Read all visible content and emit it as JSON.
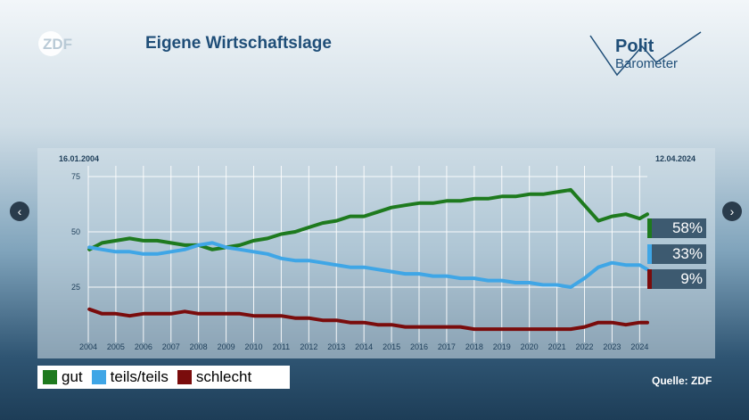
{
  "header": {
    "brand": "ZDF",
    "title": "Eigene Wirtschaftslage",
    "polit_line1": "Polit",
    "polit_line2": "Barometer"
  },
  "date_start": "16.01.2004",
  "date_end": "12.04.2024",
  "legend": [
    {
      "label": "gut",
      "color": "#1e7a1e"
    },
    {
      "label": "teils/teils",
      "color": "#3fa6e6"
    },
    {
      "label": "schlecht",
      "color": "#7a0c0c"
    }
  ],
  "current_values": [
    "58%",
    "33%",
    "9%"
  ],
  "source": "Quelle: ZDF",
  "colors": {
    "gut": "#1e7a1e",
    "teils": "#3fa6e6",
    "schlecht": "#7a0c0c",
    "value_box": "#3d5a70"
  },
  "chart_data": {
    "type": "line",
    "xlabel": "",
    "ylabel": "",
    "xlim": [
      2004,
      2024.28
    ],
    "ylim": [
      0,
      80
    ],
    "yticks": [
      25,
      50,
      75
    ],
    "xticks": [
      "2004",
      "2005",
      "2006",
      "2007",
      "2008",
      "2009",
      "2010",
      "2011",
      "2012",
      "2013",
      "2014",
      "2015",
      "2016",
      "2017",
      "2018",
      "2019",
      "2020",
      "2021",
      "2022",
      "2023",
      "2024"
    ],
    "grid": true,
    "legend_position": "bottom-left",
    "x": [
      2004.04,
      2004.5,
      2005,
      2005.5,
      2006,
      2006.5,
      2007,
      2007.5,
      2008,
      2008.5,
      2009,
      2009.5,
      2010,
      2010.5,
      2011,
      2011.5,
      2012,
      2012.5,
      2013,
      2013.5,
      2014,
      2014.5,
      2015,
      2015.5,
      2016,
      2016.5,
      2017,
      2017.5,
      2018,
      2018.5,
      2019,
      2019.5,
      2020,
      2020.5,
      2021,
      2021.5,
      2022,
      2022.5,
      2023,
      2023.5,
      2024,
      2024.28
    ],
    "series": [
      {
        "name": "gut",
        "values": [
          42,
          45,
          46,
          47,
          46,
          46,
          45,
          44,
          44,
          42,
          43,
          44,
          46,
          47,
          49,
          50,
          52,
          54,
          55,
          57,
          57,
          59,
          61,
          62,
          63,
          63,
          64,
          64,
          65,
          65,
          66,
          66,
          67,
          67,
          68,
          69,
          62,
          55,
          57,
          58,
          56,
          58
        ]
      },
      {
        "name": "teils/teils",
        "values": [
          43,
          42,
          41,
          41,
          40,
          40,
          41,
          42,
          44,
          45,
          43,
          42,
          41,
          40,
          38,
          37,
          37,
          36,
          35,
          34,
          34,
          33,
          32,
          31,
          31,
          30,
          30,
          29,
          29,
          28,
          28,
          27,
          27,
          26,
          26,
          25,
          29,
          34,
          36,
          35,
          35,
          33
        ]
      },
      {
        "name": "schlecht",
        "values": [
          15,
          13,
          13,
          12,
          13,
          13,
          13,
          14,
          13,
          13,
          13,
          13,
          12,
          12,
          12,
          11,
          11,
          10,
          10,
          9,
          9,
          8,
          8,
          7,
          7,
          7,
          7,
          7,
          6,
          6,
          6,
          6,
          6,
          6,
          6,
          6,
          7,
          9,
          9,
          8,
          9,
          9
        ]
      }
    ]
  }
}
